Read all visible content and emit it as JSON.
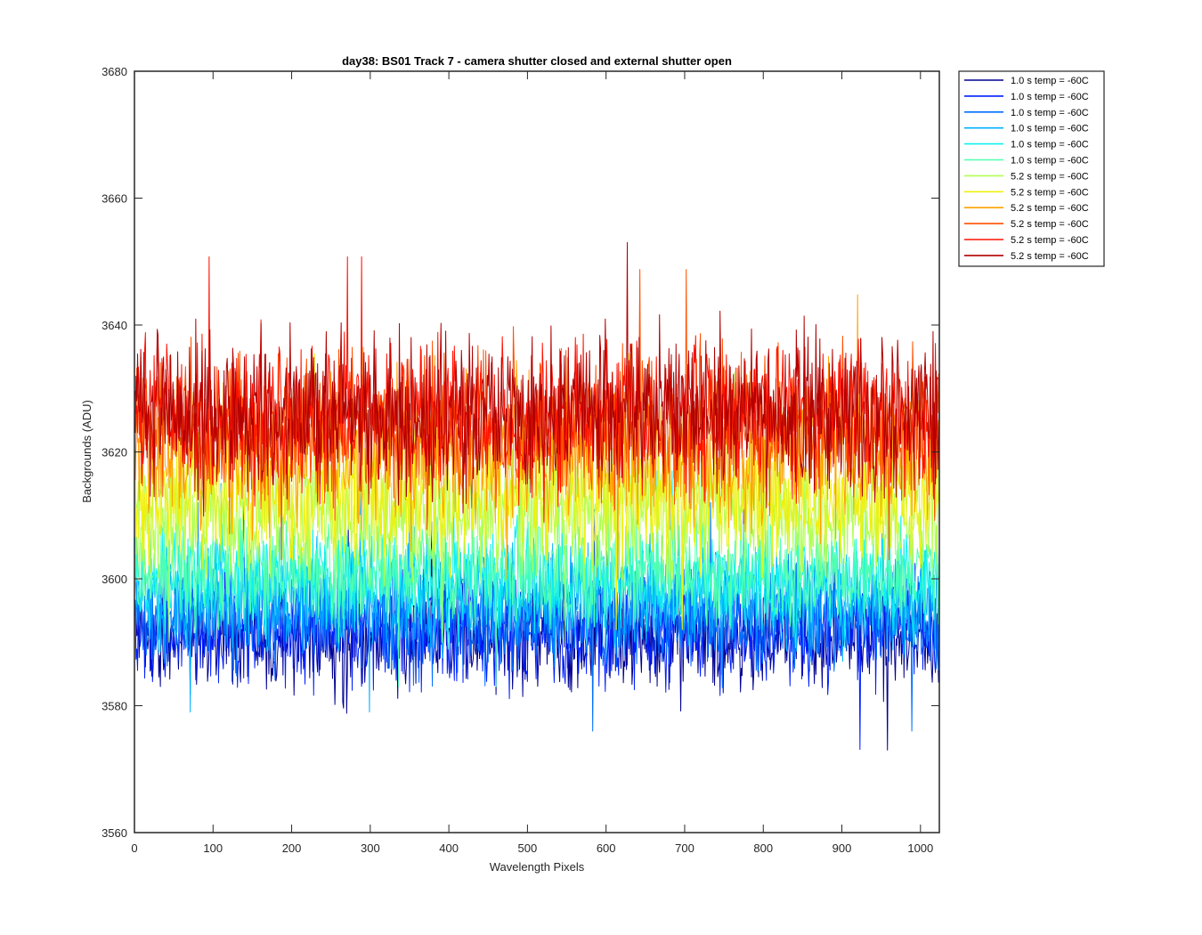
{
  "chart_data": {
    "type": "line",
    "title": "day38: BS01  Track 7 - camera shutter closed and external shutter open",
    "xlabel": "Wavelength Pixels",
    "ylabel": "Backgrounds (ADU)",
    "xlim": [
      0,
      1024
    ],
    "ylim": [
      3560,
      3680
    ],
    "xticks": [
      0,
      100,
      200,
      300,
      400,
      500,
      600,
      700,
      800,
      900,
      1000
    ],
    "yticks": [
      3560,
      3580,
      3600,
      3620,
      3640,
      3660,
      3680
    ],
    "grid": false,
    "legend_position": "outside-top-right",
    "series": [
      {
        "name": "1.0 s temp = -60C",
        "color": "#00008f",
        "mean": 3591,
        "noise": 4.0,
        "min": 3568,
        "max": 3612
      },
      {
        "name": "1.0 s temp = -60C",
        "color": "#0020ff",
        "mean": 3592,
        "noise": 4.2,
        "min": 3564,
        "max": 3614
      },
      {
        "name": "1.0 s temp = -60C",
        "color": "#0070ff",
        "mean": 3594,
        "noise": 4.0,
        "min": 3572,
        "max": 3612
      },
      {
        "name": "1.0 s temp = -60C",
        "color": "#00b0ff",
        "mean": 3597,
        "noise": 4.0,
        "min": 3575,
        "max": 3615
      },
      {
        "name": "1.0 s temp = -60C",
        "color": "#10f0f0",
        "mean": 3600,
        "noise": 4.0,
        "min": 3580,
        "max": 3617
      },
      {
        "name": "1.0 s temp = -60C",
        "color": "#50ffb0",
        "mean": 3601,
        "noise": 4.0,
        "min": 3577,
        "max": 3620
      },
      {
        "name": "5.2 s temp = -60C",
        "color": "#b0ff50",
        "mean": 3610,
        "noise": 5.0,
        "min": 3590,
        "max": 3645
      },
      {
        "name": "5.2 s temp = -60C",
        "color": "#f0f010",
        "mean": 3613,
        "noise": 5.0,
        "min": 3592,
        "max": 3651
      },
      {
        "name": "5.2 s temp = -60C",
        "color": "#ffa000",
        "mean": 3620,
        "noise": 5.5,
        "min": 3600,
        "max": 3654
      },
      {
        "name": "5.2 s temp = -60C",
        "color": "#ff5000",
        "mean": 3624,
        "noise": 5.5,
        "min": 3603,
        "max": 3654
      },
      {
        "name": "5.2 s temp = -60C",
        "color": "#ff1000",
        "mean": 3626,
        "noise": 5.5,
        "min": 3605,
        "max": 3656
      },
      {
        "name": "5.2 s temp = -60C",
        "color": "#b00000",
        "mean": 3626,
        "noise": 6.0,
        "min": 3605,
        "max": 3664
      }
    ]
  }
}
